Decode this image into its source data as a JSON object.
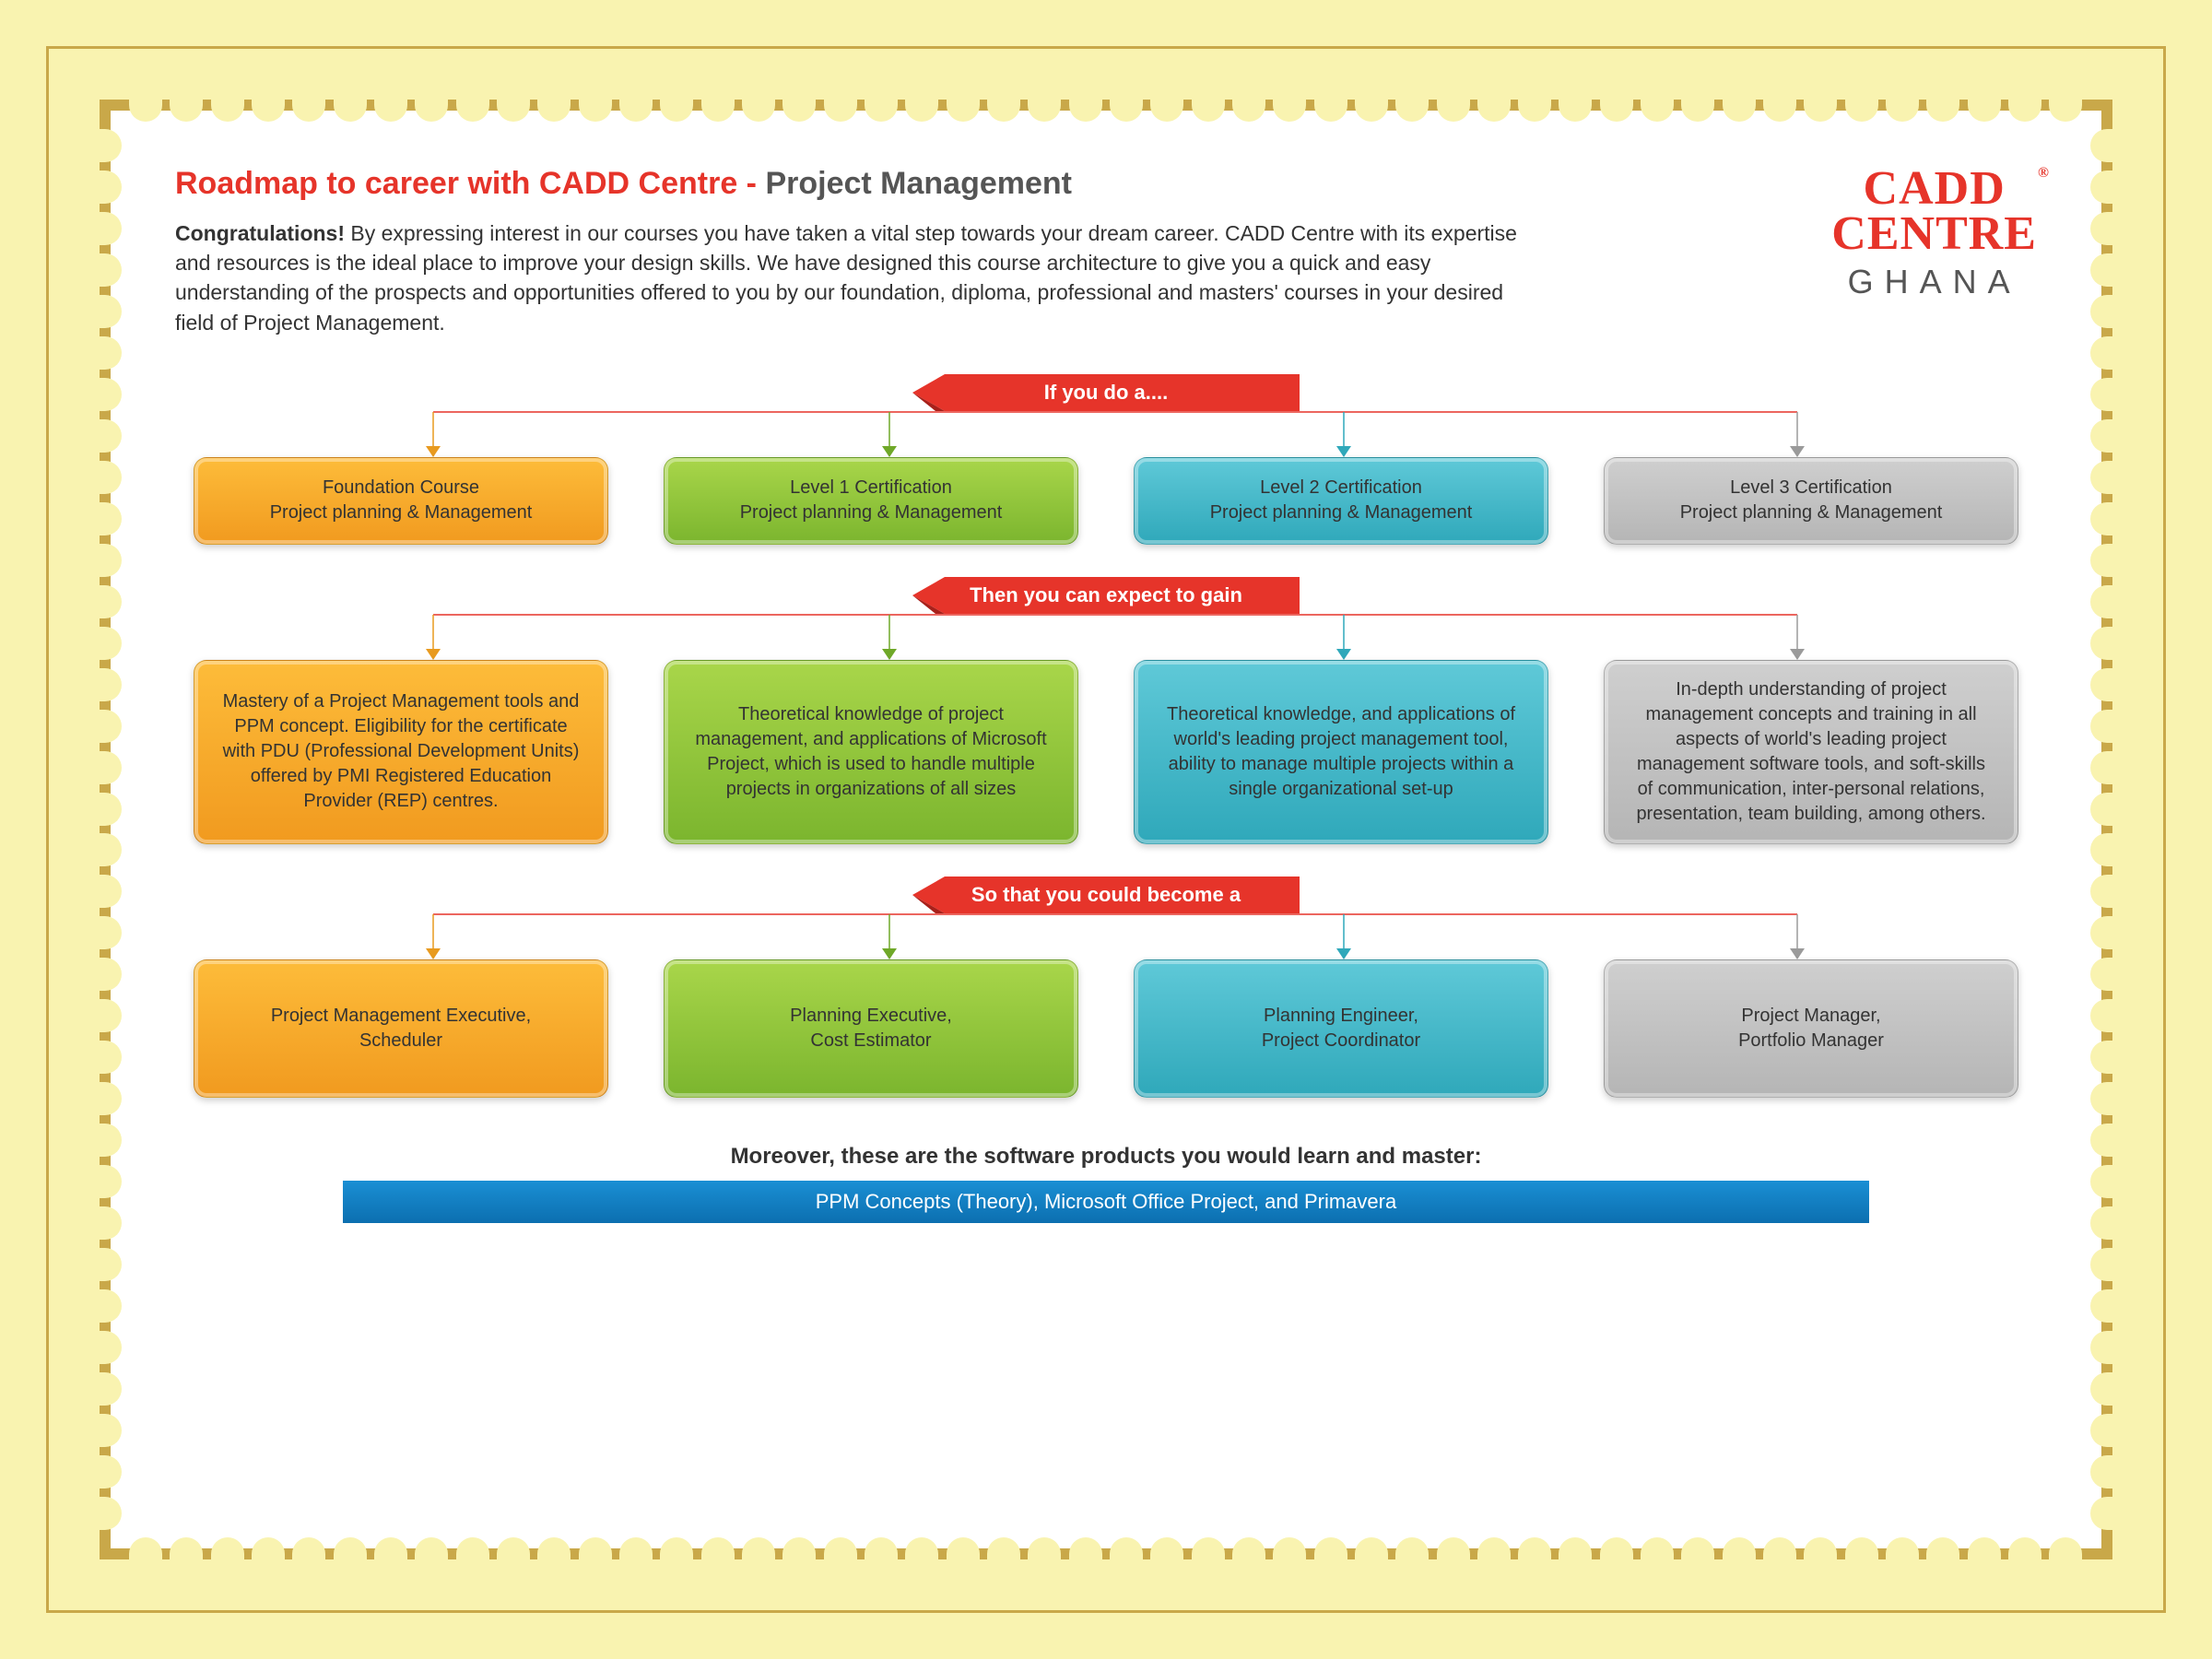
{
  "page": {
    "background_color": "#f9f3b0",
    "frame_border_color": "#c9a849",
    "content_bg": "#ffffff"
  },
  "header": {
    "title_red": "Roadmap to career with CADD Centre - ",
    "title_gray": "Project Management",
    "congrats": "Congratulations!",
    "intro": " By expressing interest in our courses you have taken a vital step towards your dream career.  CADD Centre with its expertise and resources is the ideal place to improve your design skills. We have designed this course architecture to give you a quick and easy understanding of the prospects and opportunities offered to you by our foundation, diploma, professional and masters' courses in your desired field of Project Management.",
    "logo_line1": "CADD",
    "logo_line2": "CENTRE",
    "logo_sub": "GHANA"
  },
  "banners": {
    "b1": "If you do a....",
    "b2": "Then you can expect to gain",
    "b3": "So that you could become a",
    "banner_fill": "#e6342a",
    "banner_shadow": "#a8201a"
  },
  "colors": {
    "orange": {
      "bg": "linear-gradient(#fdbc3a,#f19a1f)",
      "line": "#e89a1f"
    },
    "green": {
      "bg": "linear-gradient(#a9d64a,#7bb52e)",
      "line": "#6fa828"
    },
    "teal": {
      "bg": "linear-gradient(#5fc9d8,#2fa8ba)",
      "line": "#2fa8ba"
    },
    "gray": {
      "bg": "linear-gradient(#cfcfcf,#b5b5b5)",
      "line": "#9a9a9a"
    }
  },
  "row1": {
    "c1_t": "Foundation Course",
    "c1_s": "Project planning & Management",
    "c2_t": "Level 1 Certification",
    "c2_s": "Project planning & Management",
    "c3_t": "Level 2 Certification",
    "c3_s": "Project planning & Management",
    "c4_t": "Level 3 Certification",
    "c4_s": "Project planning & Management"
  },
  "row2": {
    "c1": "Mastery of a Project Management tools and PPM concept. Eligibility for the certificate with PDU (Professional Development Units) offered by PMI Registered Education Provider (REP) centres.",
    "c2": "Theoretical knowledge of project management, and applications of Microsoft Project, which is used to handle multiple projects in organizations of all sizes",
    "c3": "Theoretical knowledge, and applications of world's leading project management tool, ability to manage multiple projects within a single organizational set-up",
    "c4": "In-depth understanding of project management concepts and training in all aspects of world's leading project management software tools, and soft-skills of communication, inter-personal relations, presentation, team building, among others."
  },
  "row3": {
    "c1_a": "Project Management Executive,",
    "c1_b": "Scheduler",
    "c2_a": "Planning Executive,",
    "c2_b": "Cost Estimator",
    "c3_a": "Planning Engineer,",
    "c3_b": "Project Coordinator",
    "c4_a": "Project Manager,",
    "c4_b": "Portfolio Manager"
  },
  "footer": {
    "title": "Moreover, these are the software products you would learn and master:",
    "bar": "PPM Concepts (Theory), Microsoft Office Project, and Primavera",
    "bar_bg": "#1a8fd4"
  }
}
